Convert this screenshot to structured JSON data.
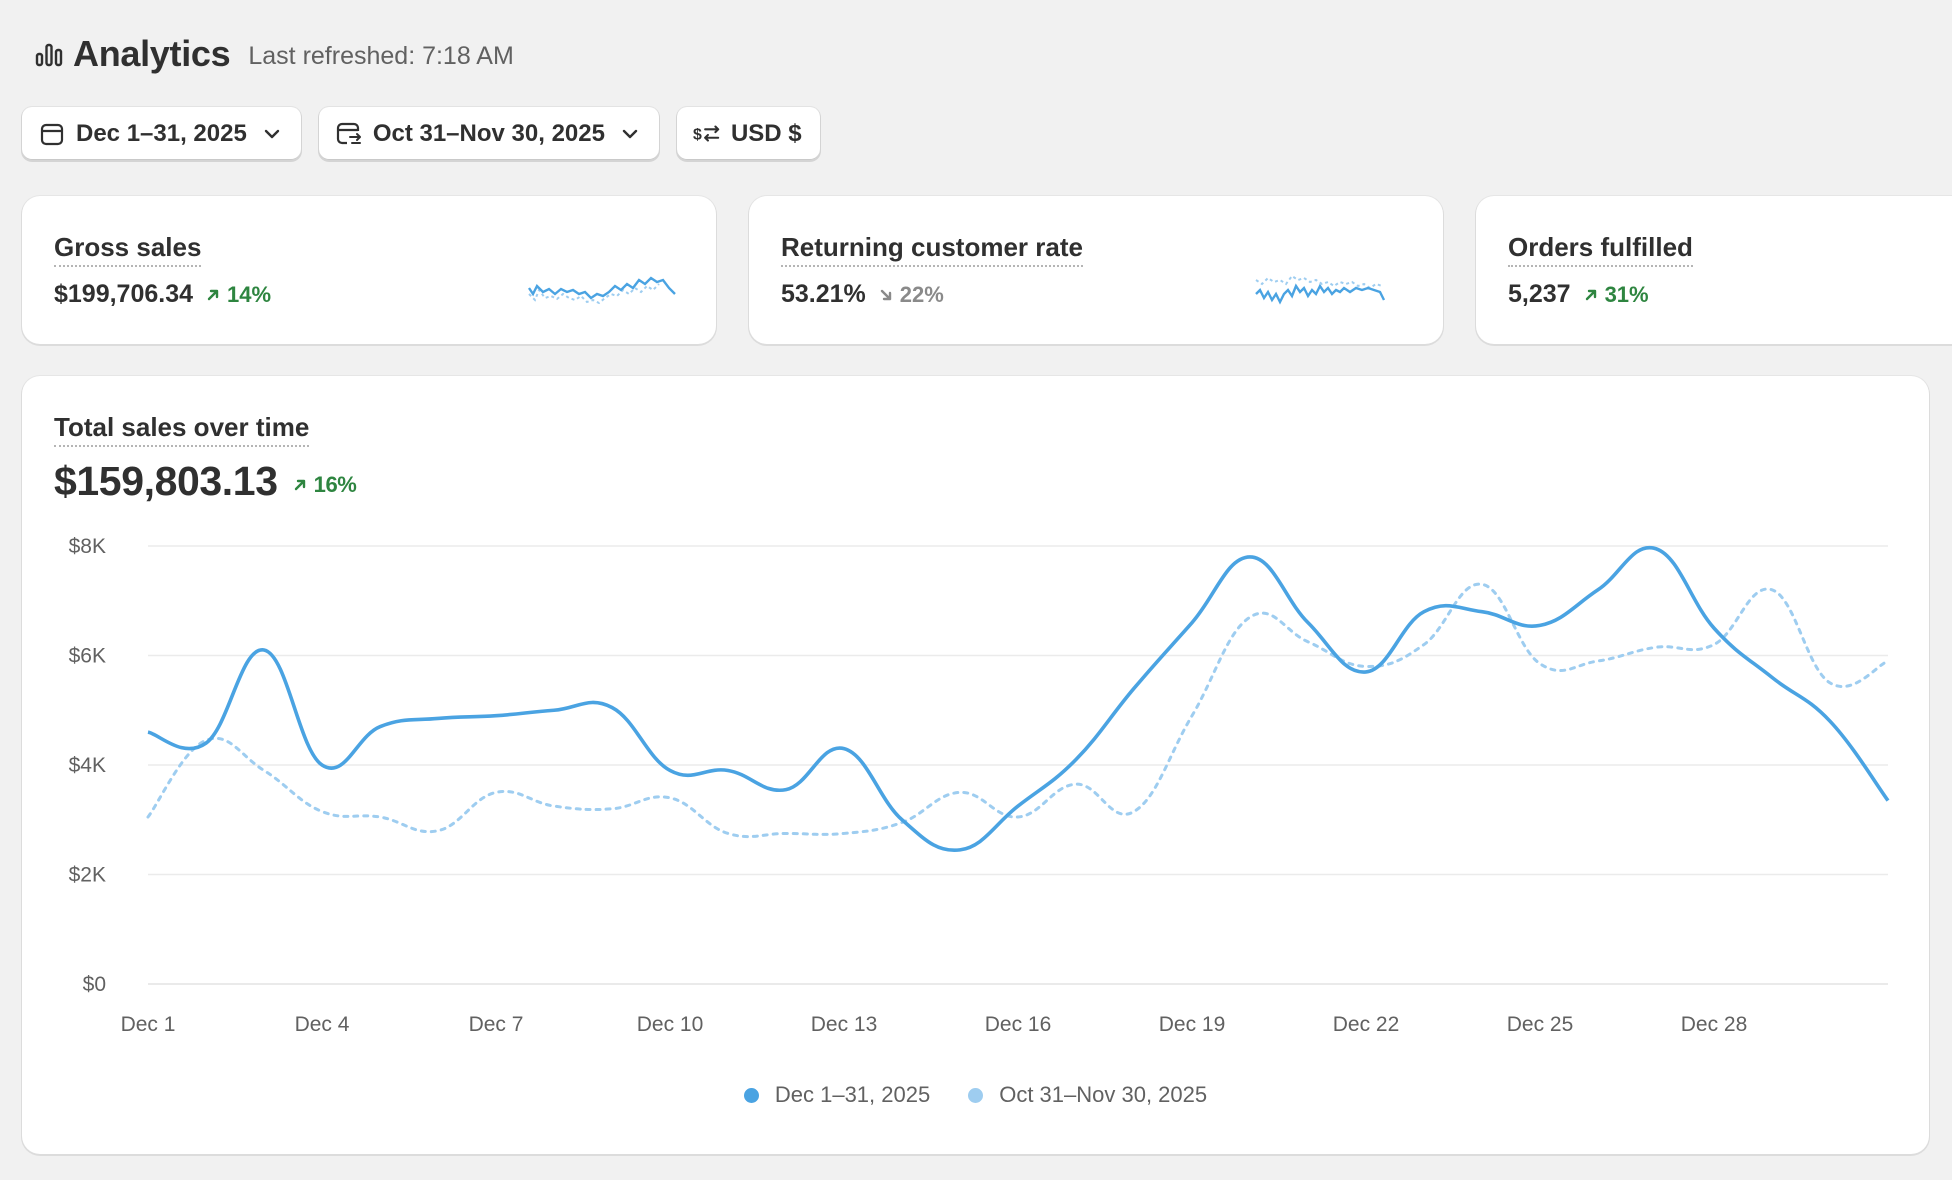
{
  "header": {
    "title": "Analytics",
    "refreshed": "Last refreshed: 7:18 AM",
    "icon": "bar-chart-icon"
  },
  "filters": {
    "date_range": "Dec 1–31, 2025",
    "compare_range": "Oct 31–Nov 30, 2025",
    "currency": "USD $"
  },
  "kpis": [
    {
      "title": "Gross sales",
      "value": "$199,706.34",
      "delta": "14%",
      "direction": "up"
    },
    {
      "title": "Returning customer rate",
      "value": "53.21%",
      "delta": "22%",
      "direction": "down"
    },
    {
      "title": "Orders fulfilled",
      "value": "5,237",
      "delta": "31%",
      "direction": "up"
    }
  ],
  "main_chart": {
    "title": "Total sales over time",
    "value": "$159,803.13",
    "delta": "16%",
    "direction": "up"
  },
  "colors": {
    "primary": "#4aa3e2",
    "comparison": "#9ecdf0",
    "positive": "#2e8540",
    "negative": "#8a8a8a"
  },
  "chart_data": {
    "type": "line",
    "title": "Total sales over time",
    "x": [
      "Dec 1",
      "Dec 2",
      "Dec 3",
      "Dec 4",
      "Dec 5",
      "Dec 6",
      "Dec 7",
      "Dec 8",
      "Dec 9",
      "Dec 10",
      "Dec 11",
      "Dec 12",
      "Dec 13",
      "Dec 14",
      "Dec 15",
      "Dec 16",
      "Dec 17",
      "Dec 18",
      "Dec 19",
      "Dec 20",
      "Dec 21",
      "Dec 22",
      "Dec 23",
      "Dec 24",
      "Dec 25",
      "Dec 26",
      "Dec 27",
      "Dec 28",
      "Dec 29",
      "Dec 30",
      "Dec 31"
    ],
    "x_tick_labels": [
      "Dec 1",
      "Dec 4",
      "Dec 7",
      "Dec 10",
      "Dec 13",
      "Dec 16",
      "Dec 19",
      "Dec 22",
      "Dec 25",
      "Dec 28"
    ],
    "y_tick_labels": [
      "$0",
      "$2K",
      "$4K",
      "$6K",
      "$8K"
    ],
    "ylim": [
      0,
      8000
    ],
    "grid": true,
    "legend_position": "bottom",
    "series": [
      {
        "name": "Dec 1–31, 2025",
        "style": "solid",
        "values": [
          4600,
          4400,
          6100,
          4000,
          4700,
          4850,
          4900,
          5000,
          5050,
          3900,
          3900,
          3550,
          4300,
          3000,
          2450,
          3250,
          4100,
          5400,
          6600,
          7800,
          6600,
          5700,
          6800,
          6800,
          6550,
          7200,
          7950,
          6500,
          5600,
          4800,
          3350
        ]
      },
      {
        "name": "Oct 31–Nov 30, 2025",
        "style": "dashed",
        "values": [
          3050,
          4450,
          3900,
          3150,
          3050,
          2800,
          3500,
          3250,
          3200,
          3400,
          2750,
          2750,
          2750,
          2950,
          3500,
          3050,
          3650,
          3150,
          4900,
          6700,
          6250,
          5800,
          6200,
          7300,
          5850,
          5900,
          6150,
          6200,
          7200,
          5500,
          5900
        ]
      }
    ]
  }
}
